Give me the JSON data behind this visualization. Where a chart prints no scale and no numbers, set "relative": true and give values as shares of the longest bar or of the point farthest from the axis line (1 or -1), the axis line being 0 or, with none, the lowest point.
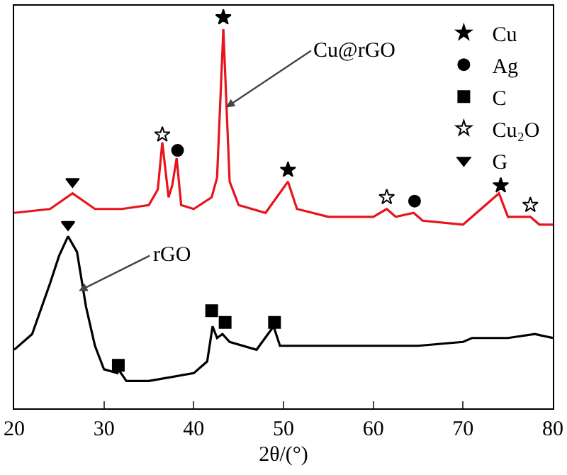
{
  "chart_data": {
    "type": "line",
    "relative": true,
    "xlabel": "2θ/(°)",
    "xlim": [
      20,
      80
    ],
    "xticks": [
      20,
      30,
      40,
      50,
      60,
      70,
      80
    ],
    "legend": "top right",
    "grid": false,
    "series": [
      {
        "color": "#e8141c",
        "x": [
          20,
          24,
          26.5,
          29,
          32,
          35,
          36,
          36.5,
          37.2,
          37.6,
          38.1,
          38.6,
          40,
          42,
          42.6,
          43.3,
          44,
          45,
          48,
          50.5,
          51.5,
          55,
          60,
          61.5,
          62.5,
          64.5,
          65.5,
          70,
          74,
          75,
          77.5,
          78.5,
          80
        ],
        "values": [
          0.5,
          0.51,
          0.55,
          0.51,
          0.51,
          0.52,
          0.56,
          0.68,
          0.54,
          0.57,
          0.64,
          0.52,
          0.51,
          0.54,
          0.59,
          0.97,
          0.58,
          0.52,
          0.5,
          0.58,
          0.51,
          0.49,
          0.49,
          0.51,
          0.49,
          0.5,
          0.48,
          0.47,
          0.55,
          0.49,
          0.49,
          0.47,
          0.47
        ]
      },
      {
        "color": "#000000",
        "x": [
          20,
          22,
          24,
          25,
          26,
          27,
          28,
          29,
          30,
          31.5,
          31.6,
          32.5,
          35,
          40,
          41.5,
          42.1,
          42.6,
          43.2,
          44,
          47,
          48.9,
          49.6,
          50.5,
          51,
          55,
          60,
          65,
          70,
          71,
          75,
          78,
          80
        ],
        "values": [
          0.15,
          0.19,
          0.32,
          0.39,
          0.44,
          0.4,
          0.26,
          0.16,
          0.1,
          0.09,
          0.1,
          0.07,
          0.07,
          0.09,
          0.12,
          0.21,
          0.18,
          0.19,
          0.17,
          0.15,
          0.21,
          0.16,
          0.16,
          0.16,
          0.16,
          0.16,
          0.16,
          0.17,
          0.18,
          0.18,
          0.19,
          0.18
        ]
      },
      {
        "type": "scatter",
        "name": "Cu",
        "marker": "star",
        "color": "#000000",
        "x": [
          43.3,
          50.5,
          74.2
        ],
        "values": [
          1,
          0.61,
          0.57
        ]
      },
      {
        "type": "scatter",
        "name": "Ag",
        "marker": "circle",
        "color": "#000000",
        "x": [
          38.2,
          64.6
        ],
        "values": [
          0.66,
          0.53
        ]
      },
      {
        "type": "scatter",
        "name": "C",
        "marker": "square",
        "color": "#000000",
        "x": [
          31.6,
          42,
          43.5,
          49
        ],
        "values": [
          0.11,
          0.25,
          0.22,
          0.22
        ]
      },
      {
        "type": "scatter",
        "name": "Cu₂O",
        "marker": "star-open",
        "color": "#000000",
        "x": [
          36.5,
          61.5,
          77.5
        ],
        "values": [
          0.7,
          0.54,
          0.52
        ]
      },
      {
        "type": "scatter",
        "name": "G",
        "marker": "triangle-down",
        "color": "#000000",
        "x": [
          26.5,
          26
        ],
        "values": [
          0.58,
          0.47
        ]
      }
    ],
    "annotations": [
      {
        "text": "Cu@rGO",
        "x": 43.6,
        "y": 0.77
      },
      {
        "text": "rGO",
        "x": 27.2,
        "y": 0.3
      }
    ]
  }
}
